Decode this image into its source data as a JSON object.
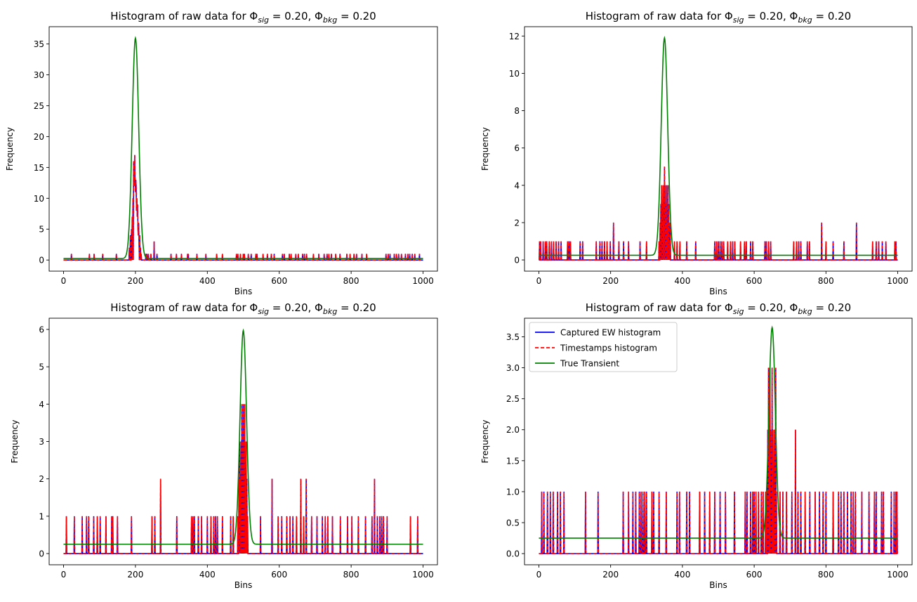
{
  "chart_data": [
    {
      "type": "line",
      "title": "Histogram of raw data for Φ",
      "title_sig": "sig",
      "title_mid": " = 0.20, Φ",
      "title_bkg": "bkg",
      "title_end": " = 0.20",
      "xlabel": "Bins",
      "ylabel": "Frequency",
      "xlim": [
        -40,
        1040
      ],
      "ylim": [
        -1.8,
        37.8
      ],
      "xticks": [
        0,
        200,
        400,
        600,
        800,
        1000
      ],
      "yticks": [
        0,
        5,
        10,
        15,
        20,
        25,
        30,
        35
      ],
      "ytick_labels": [
        "0",
        "5",
        "10",
        "15",
        "20",
        "25",
        "30",
        "35"
      ],
      "legend": false,
      "transient": {
        "center": 200,
        "sigma": 9,
        "peak": 35.7,
        "baseline": 0.25
      },
      "noise_bins": [
        22,
        72,
        85,
        109,
        147,
        229,
        232,
        236,
        243,
        252,
        260,
        299,
        314,
        328,
        345,
        347,
        371,
        396,
        426,
        442,
        481,
        485,
        492,
        500,
        503,
        514,
        522,
        535,
        538,
        555,
        567,
        578,
        586,
        609,
        614,
        628,
        633,
        646,
        653,
        665,
        670,
        676,
        695,
        710,
        725,
        733,
        738,
        745,
        757,
        769,
        788,
        797,
        808,
        815,
        830,
        843,
        897,
        903,
        908,
        920,
        926,
        932,
        940,
        951,
        958,
        963,
        970,
        977,
        990
      ],
      "noise_counts": {
        "252": 3,
        "378": 2
      },
      "peak_counts": [
        [
          183,
          2
        ],
        [
          186,
          4
        ],
        [
          189,
          5
        ],
        [
          191,
          7
        ],
        [
          193,
          10
        ],
        [
          195,
          16
        ],
        [
          196,
          12
        ],
        [
          197,
          14
        ],
        [
          198,
          17
        ],
        [
          199,
          13
        ],
        [
          200,
          11
        ],
        [
          201,
          13
        ],
        [
          202,
          12
        ],
        [
          203,
          8
        ],
        [
          204,
          10
        ],
        [
          205,
          7
        ],
        [
          206,
          9
        ],
        [
          207,
          5
        ],
        [
          208,
          4
        ],
        [
          209,
          6
        ],
        [
          210,
          3
        ],
        [
          212,
          4
        ],
        [
          214,
          2
        ],
        [
          216,
          1
        ]
      ]
    },
    {
      "type": "line",
      "title": "Histogram of raw data for Φ",
      "title_sig": "sig",
      "title_mid": " = 0.20, Φ",
      "title_bkg": "bkg",
      "title_end": " = 0.20",
      "xlabel": "Bins",
      "ylabel": "Frequency",
      "xlim": [
        -40,
        1040
      ],
      "ylim": [
        -0.6,
        12.5
      ],
      "xticks": [
        0,
        200,
        400,
        600,
        800,
        1000
      ],
      "yticks": [
        0,
        2,
        4,
        6,
        8,
        10,
        12
      ],
      "ytick_labels": [
        "0",
        "2",
        "4",
        "6",
        "8",
        "10",
        "12"
      ],
      "legend": false,
      "transient": {
        "center": 350,
        "sigma": 9,
        "peak": 11.65,
        "baseline": 0.25
      },
      "noise_bins": [
        2,
        5,
        12,
        18,
        22,
        29,
        35,
        41,
        48,
        55,
        62,
        80,
        84,
        88,
        115,
        122,
        160,
        170,
        176,
        183,
        190,
        199,
        208,
        223,
        236,
        250,
        282,
        300,
        378,
        385,
        393,
        412,
        437,
        490,
        495,
        500,
        505,
        510,
        515,
        526,
        534,
        540,
        546,
        562,
        573,
        578,
        590,
        596,
        630,
        634,
        640,
        646,
        710,
        718,
        724,
        730,
        748,
        754,
        788,
        800,
        820,
        850,
        885,
        930,
        940,
        947,
        957,
        967,
        992,
        995
      ],
      "noise_counts": {
        "208": 2,
        "788": 2,
        "885": 2
      },
      "peak_counts": [
        [
          335,
          1
        ],
        [
          338,
          2
        ],
        [
          340,
          3
        ],
        [
          342,
          4
        ],
        [
          344,
          3
        ],
        [
          346,
          4
        ],
        [
          348,
          2
        ],
        [
          350,
          5
        ],
        [
          352,
          4
        ],
        [
          354,
          3
        ],
        [
          356,
          4
        ],
        [
          358,
          2
        ],
        [
          360,
          4
        ],
        [
          362,
          3
        ],
        [
          364,
          1
        ],
        [
          366,
          2
        ]
      ]
    },
    {
      "type": "line",
      "title": "Histogram of raw data for Φ",
      "title_sig": "sig",
      "title_mid": " = 0.20, Φ",
      "title_bkg": "bkg",
      "title_end": " = 0.20",
      "xlabel": "Bins",
      "ylabel": "Frequency",
      "xlim": [
        -40,
        1040
      ],
      "ylim": [
        -0.3,
        6.3
      ],
      "xticks": [
        0,
        200,
        400,
        600,
        800,
        1000
      ],
      "yticks": [
        0,
        1,
        2,
        3,
        4,
        5,
        6
      ],
      "ytick_labels": [
        "0",
        "1",
        "2",
        "3",
        "4",
        "5",
        "6"
      ],
      "legend": false,
      "transient": {
        "center": 500,
        "sigma": 9,
        "peak": 5.72,
        "baseline": 0.25
      },
      "noise_bins": [
        8,
        30,
        52,
        64,
        70,
        84,
        94,
        102,
        118,
        134,
        137,
        150,
        189,
        246,
        254,
        270,
        315,
        356,
        360,
        364,
        375,
        384,
        400,
        410,
        418,
        423,
        428,
        442,
        465,
        472,
        548,
        580,
        597,
        607,
        621,
        630,
        638,
        648,
        660,
        668,
        675,
        690,
        705,
        720,
        728,
        735,
        748,
        770,
        790,
        802,
        820,
        840,
        858,
        865,
        873,
        880,
        885,
        890,
        900,
        965,
        985
      ],
      "noise_counts": {
        "270": 2,
        "580": 2,
        "660": 2,
        "675": 2,
        "865": 2
      },
      "peak_counts": [
        [
          485,
          1
        ],
        [
          488,
          2
        ],
        [
          490,
          3
        ],
        [
          492,
          2
        ],
        [
          494,
          3
        ],
        [
          496,
          4
        ],
        [
          498,
          3
        ],
        [
          500,
          4
        ],
        [
          502,
          3
        ],
        [
          504,
          4
        ],
        [
          506,
          2
        ],
        [
          508,
          3
        ],
        [
          510,
          2
        ],
        [
          512,
          1
        ]
      ]
    },
    {
      "type": "line",
      "title": "Histogram of raw data for Φ",
      "title_sig": "sig",
      "title_mid": " = 0.20, Φ",
      "title_bkg": "bkg",
      "title_end": " = 0.20",
      "xlabel": "Bins",
      "ylabel": "Frequency",
      "xlim": [
        -40,
        1040
      ],
      "ylim": [
        -0.18,
        3.8
      ],
      "xticks": [
        0,
        200,
        400,
        600,
        800,
        1000
      ],
      "yticks": [
        0,
        0.5,
        1,
        1.5,
        2,
        2.5,
        3,
        3.5
      ],
      "ytick_labels": [
        "0.0",
        "0.5",
        "1.0",
        "1.5",
        "2.0",
        "2.5",
        "3.0",
        "3.5"
      ],
      "legend": true,
      "legend_position": "upper-left",
      "legend_entries": [
        "Captured EW histogram",
        "Timestamps histogram",
        "True Transient"
      ],
      "transient": {
        "center": 650,
        "sigma": 9,
        "peak": 3.4,
        "baseline": 0.25
      },
      "noise_bins": [
        8,
        14,
        24,
        32,
        40,
        52,
        60,
        70,
        130,
        165,
        235,
        250,
        262,
        270,
        280,
        285,
        290,
        295,
        300,
        315,
        320,
        335,
        355,
        385,
        392,
        412,
        420,
        448,
        462,
        476,
        490,
        505,
        520,
        545,
        575,
        580,
        590,
        596,
        600,
        605,
        612,
        620,
        625,
        632,
        672,
        680,
        690,
        705,
        715,
        722,
        730,
        742,
        755,
        770,
        782,
        792,
        800,
        820,
        835,
        842,
        850,
        860,
        870,
        876,
        882,
        900,
        920,
        935,
        940,
        955,
        960,
        982,
        990,
        995,
        998
      ],
      "noise_counts": {
        "715": 2
      },
      "peak_counts": [
        [
          635,
          1
        ],
        [
          638,
          2
        ],
        [
          640,
          3
        ],
        [
          642,
          2
        ],
        [
          644,
          3
        ],
        [
          646,
          2
        ],
        [
          648,
          1
        ],
        [
          650,
          3
        ],
        [
          652,
          2
        ],
        [
          654,
          1
        ],
        [
          656,
          2
        ],
        [
          658,
          1
        ],
        [
          660,
          3
        ],
        [
          662,
          1
        ]
      ]
    }
  ],
  "colors": {
    "captured": "#0000ff",
    "timestamps": "#ff0000",
    "transient": "#008000"
  }
}
